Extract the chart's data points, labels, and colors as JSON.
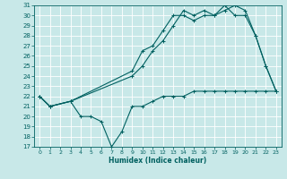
{
  "xlabel": "Humidex (Indice chaleur)",
  "xlim": [
    -0.5,
    23.5
  ],
  "ylim": [
    17,
    31
  ],
  "yticks": [
    17,
    18,
    19,
    20,
    21,
    22,
    23,
    24,
    25,
    26,
    27,
    28,
    29,
    30,
    31
  ],
  "xticks": [
    0,
    1,
    2,
    3,
    4,
    5,
    6,
    7,
    8,
    9,
    10,
    11,
    12,
    13,
    14,
    15,
    16,
    17,
    18,
    19,
    20,
    21,
    22,
    23
  ],
  "bg_color": "#c8e8e8",
  "line_color": "#006060",
  "grid_color": "#ffffff",
  "line1_x": [
    0,
    1,
    3,
    4,
    5,
    6,
    7,
    8,
    9,
    10,
    11,
    12,
    13,
    14,
    15,
    16,
    17,
    18,
    19,
    20,
    21,
    22,
    23
  ],
  "line1_y": [
    22,
    21,
    21.5,
    20,
    20,
    19.5,
    17,
    18.5,
    21,
    21,
    21.5,
    22,
    22,
    22,
    22.5,
    22.5,
    22.5,
    22.5,
    22.5,
    22.5,
    22.5,
    22.5,
    22.5
  ],
  "line2_x": [
    0,
    1,
    3,
    9,
    10,
    11,
    12,
    13,
    14,
    15,
    16,
    17,
    18,
    19,
    20,
    21,
    22,
    23
  ],
  "line2_y": [
    22,
    21,
    21.5,
    24.5,
    26.5,
    27,
    28.5,
    30,
    30,
    29.5,
    30,
    30,
    30.5,
    31,
    30.5,
    28,
    25,
    22.5
  ],
  "line3_x": [
    0,
    1,
    3,
    9,
    10,
    11,
    12,
    13,
    14,
    15,
    16,
    17,
    18,
    19,
    20,
    21,
    22,
    23
  ],
  "line3_y": [
    22,
    21,
    21.5,
    24,
    25,
    26.5,
    27.5,
    29,
    30.5,
    30,
    30.5,
    30,
    31,
    30,
    30,
    28,
    25,
    22.5
  ]
}
